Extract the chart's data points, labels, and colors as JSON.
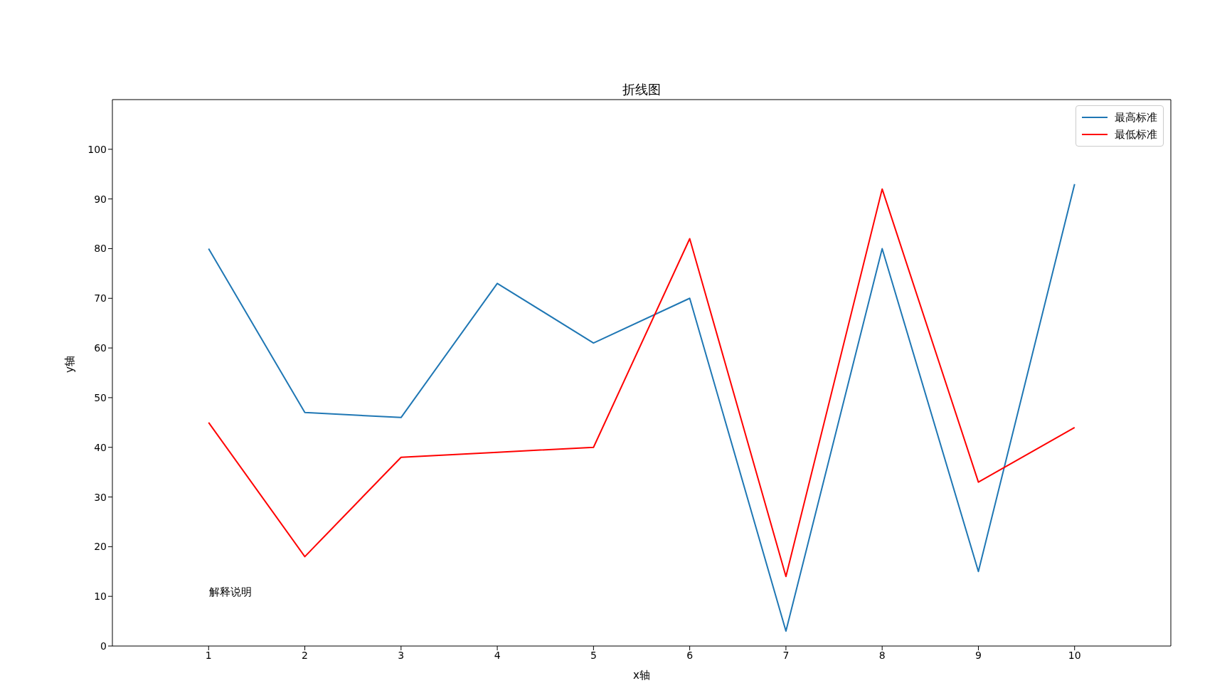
{
  "chart_data": {
    "type": "line",
    "title": "折线图",
    "xlabel": "x轴",
    "ylabel": "y轴",
    "x": [
      1,
      2,
      3,
      4,
      5,
      6,
      7,
      8,
      9,
      10
    ],
    "series": [
      {
        "name": "最高标准",
        "color": "#1f77b4",
        "values": [
          80,
          47,
          46,
          73,
          61,
          70,
          3,
          80,
          15,
          93
        ]
      },
      {
        "name": "最低标准",
        "color": "#ff0000",
        "values": [
          45,
          18,
          38,
          39,
          40,
          82,
          14,
          92,
          33,
          44
        ]
      }
    ],
    "xlim": [
      0,
      11
    ],
    "xticks": [
      1,
      2,
      3,
      4,
      5,
      6,
      7,
      8,
      9,
      10
    ],
    "ylim": [
      0,
      110
    ],
    "yticks": [
      0,
      10,
      20,
      30,
      40,
      50,
      60,
      70,
      80,
      90,
      100
    ],
    "annotations": [
      "解释说明"
    ],
    "legend": "top right",
    "grid": false,
    "marker": "none",
    "line_style": "solid"
  }
}
